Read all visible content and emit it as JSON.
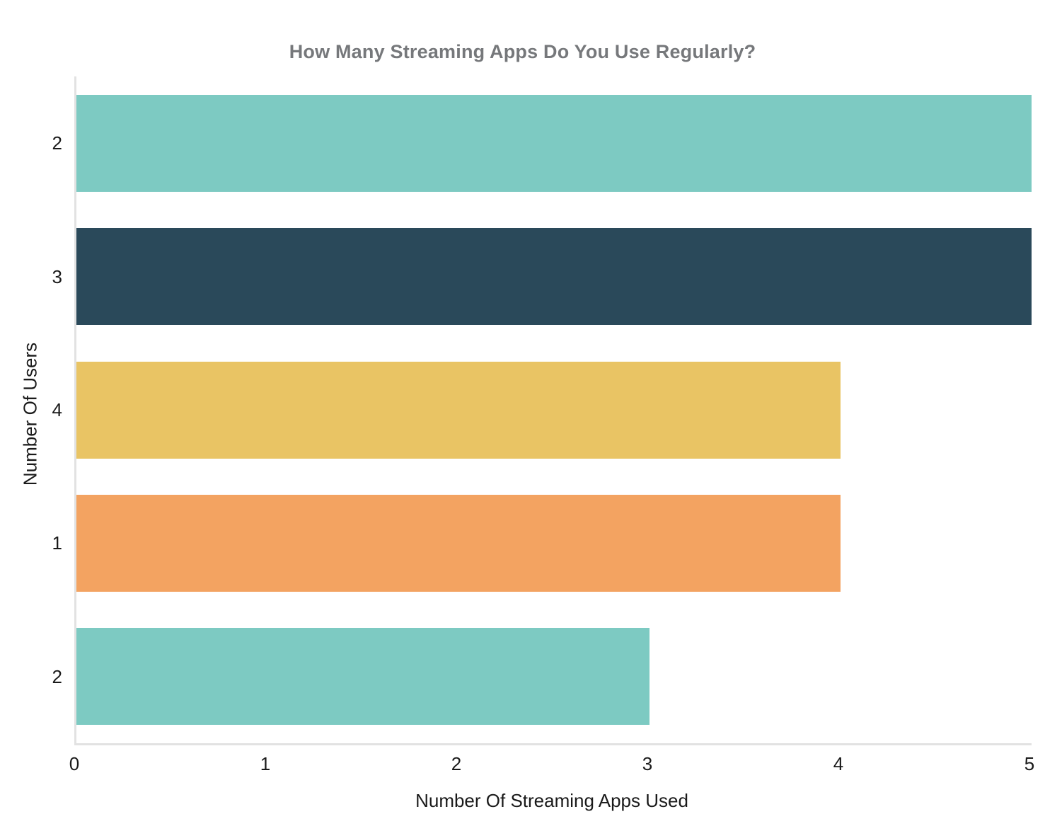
{
  "chart_data": {
    "type": "bar",
    "orientation": "horizontal",
    "title": "How Many Streaming Apps Do You Use Regularly?",
    "xlabel": "Number Of Streaming Apps Used",
    "ylabel": "Number Of Users",
    "categories": [
      "2",
      "3",
      "4",
      "1",
      "2"
    ],
    "values": [
      5,
      5,
      4,
      4,
      3
    ],
    "bar_colors": [
      "#7dcac2",
      "#2a495a",
      "#e9c464",
      "#f3a361",
      "#7dcac2"
    ],
    "xlim": [
      0,
      5
    ],
    "x_ticks": [
      "0",
      "1",
      "2",
      "3",
      "4",
      "5"
    ],
    "grid": false,
    "legend_position": "none"
  },
  "style": {
    "background": "#ffffff",
    "title_color": "#76787b",
    "axis_line_color": "#e2e2e2",
    "tick_text_color": "#1a1a1a"
  }
}
